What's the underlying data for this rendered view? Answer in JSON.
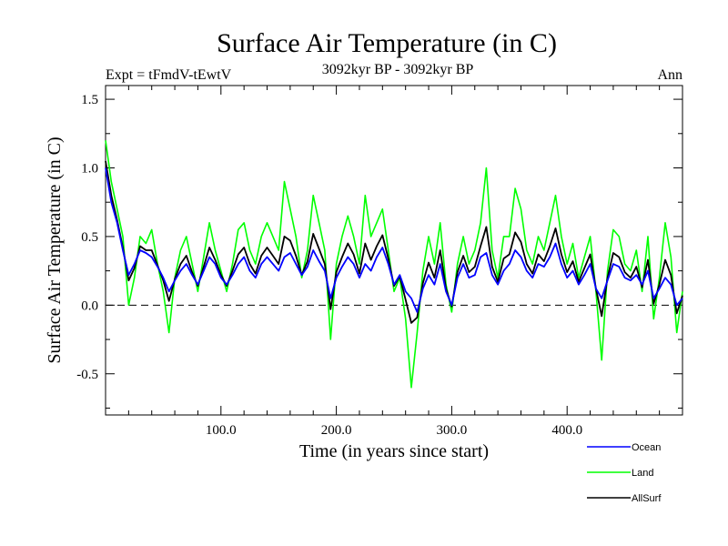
{
  "chart_data": {
    "type": "line",
    "title": "Surface Air Temperature (in C)",
    "subtitle": "3092kyr BP - 3092kyr BP",
    "experiment": "Expt = tFmdV-tEwtV",
    "season": "Ann",
    "xlabel": "Time (in years since start)",
    "ylabel": "Surface Air Temperature (in C)",
    "xlim": [
      0,
      500
    ],
    "ylim": [
      -0.8,
      1.6
    ],
    "xticks": [
      100,
      200,
      300,
      400
    ],
    "xtick_labels": [
      "100.0",
      "200.0",
      "300.0",
      "400.0"
    ],
    "yticks": [
      -0.5,
      0.0,
      0.5,
      1.0,
      1.5
    ],
    "ytick_labels": [
      "-0.5",
      "0.0",
      "0.5",
      "1.0",
      "1.5"
    ],
    "reference_line": 0.0,
    "legend_position": "bottom-right",
    "series": [
      {
        "name": "Ocean",
        "color": "#0000ff",
        "x": [
          0,
          5,
          10,
          15,
          20,
          25,
          30,
          35,
          40,
          45,
          50,
          55,
          60,
          65,
          70,
          75,
          80,
          85,
          90,
          95,
          100,
          105,
          110,
          115,
          120,
          125,
          130,
          135,
          140,
          145,
          150,
          155,
          160,
          165,
          170,
          175,
          180,
          185,
          190,
          195,
          200,
          205,
          210,
          215,
          220,
          225,
          230,
          235,
          240,
          245,
          250,
          255,
          260,
          265,
          270,
          275,
          280,
          285,
          290,
          295,
          300,
          305,
          310,
          315,
          320,
          325,
          330,
          335,
          340,
          345,
          350,
          355,
          360,
          365,
          370,
          375,
          380,
          385,
          390,
          395,
          400,
          405,
          410,
          415,
          420,
          425,
          430,
          435,
          440,
          445,
          450,
          455,
          460,
          465,
          470,
          475,
          480,
          485,
          490,
          495,
          500
        ],
        "values": [
          1.0,
          0.75,
          0.6,
          0.4,
          0.22,
          0.3,
          0.4,
          0.38,
          0.35,
          0.28,
          0.2,
          0.1,
          0.18,
          0.25,
          0.3,
          0.22,
          0.15,
          0.25,
          0.35,
          0.3,
          0.2,
          0.15,
          0.22,
          0.3,
          0.35,
          0.25,
          0.2,
          0.3,
          0.35,
          0.3,
          0.25,
          0.35,
          0.38,
          0.3,
          0.22,
          0.28,
          0.4,
          0.32,
          0.25,
          0.05,
          0.2,
          0.28,
          0.35,
          0.3,
          0.2,
          0.3,
          0.25,
          0.35,
          0.42,
          0.3,
          0.15,
          0.22,
          0.1,
          0.05,
          -0.05,
          0.12,
          0.22,
          0.15,
          0.3,
          0.1,
          0.0,
          0.2,
          0.3,
          0.2,
          0.22,
          0.35,
          0.38,
          0.22,
          0.15,
          0.25,
          0.3,
          0.4,
          0.35,
          0.25,
          0.2,
          0.3,
          0.28,
          0.35,
          0.45,
          0.3,
          0.2,
          0.25,
          0.15,
          0.22,
          0.3,
          0.12,
          0.05,
          0.18,
          0.3,
          0.28,
          0.2,
          0.18,
          0.22,
          0.15,
          0.25,
          0.05,
          0.12,
          0.2,
          0.15,
          0.0,
          0.05
        ]
      },
      {
        "name": "Land",
        "color": "#00ff00",
        "x": [
          0,
          5,
          10,
          15,
          20,
          25,
          30,
          35,
          40,
          45,
          50,
          55,
          60,
          65,
          70,
          75,
          80,
          85,
          90,
          95,
          100,
          105,
          110,
          115,
          120,
          125,
          130,
          135,
          140,
          145,
          150,
          155,
          160,
          165,
          170,
          175,
          180,
          185,
          190,
          195,
          200,
          205,
          210,
          215,
          220,
          225,
          230,
          235,
          240,
          245,
          250,
          255,
          260,
          265,
          270,
          275,
          280,
          285,
          290,
          295,
          300,
          305,
          310,
          315,
          320,
          325,
          330,
          335,
          340,
          345,
          350,
          355,
          360,
          365,
          370,
          375,
          380,
          385,
          390,
          395,
          400,
          405,
          410,
          415,
          420,
          425,
          430,
          435,
          440,
          445,
          450,
          455,
          460,
          465,
          470,
          475,
          480,
          485,
          490,
          495,
          500
        ],
        "values": [
          1.2,
          0.9,
          0.7,
          0.5,
          0.0,
          0.2,
          0.5,
          0.45,
          0.55,
          0.3,
          0.1,
          -0.2,
          0.2,
          0.4,
          0.5,
          0.3,
          0.1,
          0.35,
          0.6,
          0.4,
          0.25,
          0.1,
          0.3,
          0.55,
          0.6,
          0.4,
          0.3,
          0.5,
          0.6,
          0.5,
          0.4,
          0.9,
          0.7,
          0.5,
          0.2,
          0.4,
          0.8,
          0.6,
          0.4,
          -0.25,
          0.3,
          0.5,
          0.65,
          0.5,
          0.3,
          0.8,
          0.5,
          0.6,
          0.7,
          0.4,
          0.1,
          0.2,
          -0.1,
          -0.6,
          -0.2,
          0.25,
          0.5,
          0.3,
          0.6,
          0.15,
          -0.05,
          0.3,
          0.5,
          0.3,
          0.4,
          0.6,
          1.0,
          0.4,
          0.2,
          0.5,
          0.5,
          0.85,
          0.7,
          0.4,
          0.3,
          0.5,
          0.4,
          0.6,
          0.8,
          0.5,
          0.3,
          0.45,
          0.2,
          0.35,
          0.5,
          0.1,
          -0.4,
          0.25,
          0.55,
          0.5,
          0.3,
          0.25,
          0.4,
          0.1,
          0.5,
          -0.1,
          0.2,
          0.6,
          0.35,
          -0.2,
          0.1
        ]
      },
      {
        "name": "AllSurf",
        "color": "#000000",
        "x": [
          0,
          5,
          10,
          15,
          20,
          25,
          30,
          35,
          40,
          45,
          50,
          55,
          60,
          65,
          70,
          75,
          80,
          85,
          90,
          95,
          100,
          105,
          110,
          115,
          120,
          125,
          130,
          135,
          140,
          145,
          150,
          155,
          160,
          165,
          170,
          175,
          180,
          185,
          190,
          195,
          200,
          205,
          210,
          215,
          220,
          225,
          230,
          235,
          240,
          245,
          250,
          255,
          260,
          265,
          270,
          275,
          280,
          285,
          290,
          295,
          300,
          305,
          310,
          315,
          320,
          325,
          330,
          335,
          340,
          345,
          350,
          355,
          360,
          365,
          370,
          375,
          380,
          385,
          390,
          395,
          400,
          405,
          410,
          415,
          420,
          425,
          430,
          435,
          440,
          445,
          450,
          455,
          460,
          465,
          470,
          475,
          480,
          485,
          490,
          495,
          500
        ],
        "values": [
          1.05,
          0.8,
          0.62,
          0.42,
          0.18,
          0.27,
          0.43,
          0.4,
          0.4,
          0.29,
          0.18,
          0.03,
          0.19,
          0.3,
          0.36,
          0.24,
          0.14,
          0.28,
          0.42,
          0.33,
          0.22,
          0.14,
          0.25,
          0.37,
          0.42,
          0.3,
          0.23,
          0.36,
          0.42,
          0.36,
          0.3,
          0.5,
          0.47,
          0.36,
          0.22,
          0.32,
          0.52,
          0.41,
          0.3,
          -0.03,
          0.24,
          0.35,
          0.45,
          0.37,
          0.23,
          0.45,
          0.33,
          0.43,
          0.51,
          0.34,
          0.14,
          0.21,
          0.04,
          -0.13,
          -0.09,
          0.16,
          0.31,
          0.2,
          0.4,
          0.12,
          -0.01,
          0.24,
          0.36,
          0.24,
          0.28,
          0.43,
          0.57,
          0.28,
          0.17,
          0.34,
          0.37,
          0.53,
          0.46,
          0.3,
          0.23,
          0.37,
          0.32,
          0.43,
          0.56,
          0.37,
          0.24,
          0.32,
          0.17,
          0.27,
          0.37,
          0.12,
          -0.08,
          0.2,
          0.38,
          0.35,
          0.24,
          0.2,
          0.28,
          0.13,
          0.33,
          0.01,
          0.15,
          0.33,
          0.22,
          -0.06,
          0.07
        ]
      }
    ]
  }
}
